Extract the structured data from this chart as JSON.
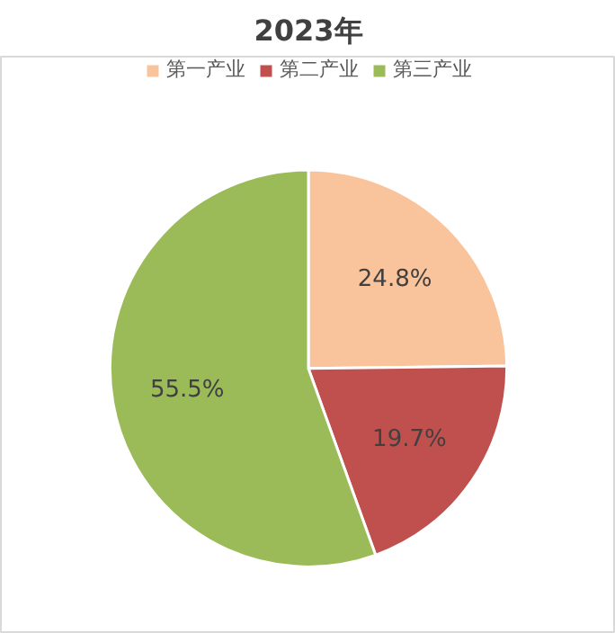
{
  "chart_data": {
    "type": "pie",
    "title": "2023年",
    "categories": [
      "第一产业",
      "第二产业",
      "第三产业"
    ],
    "values": [
      24.8,
      19.7,
      55.5
    ],
    "colors": [
      "#f9c39b",
      "#c0504d",
      "#9bbb59"
    ],
    "value_labels": [
      "24.8%",
      "19.7%",
      "55.5%"
    ],
    "legend": "top"
  }
}
